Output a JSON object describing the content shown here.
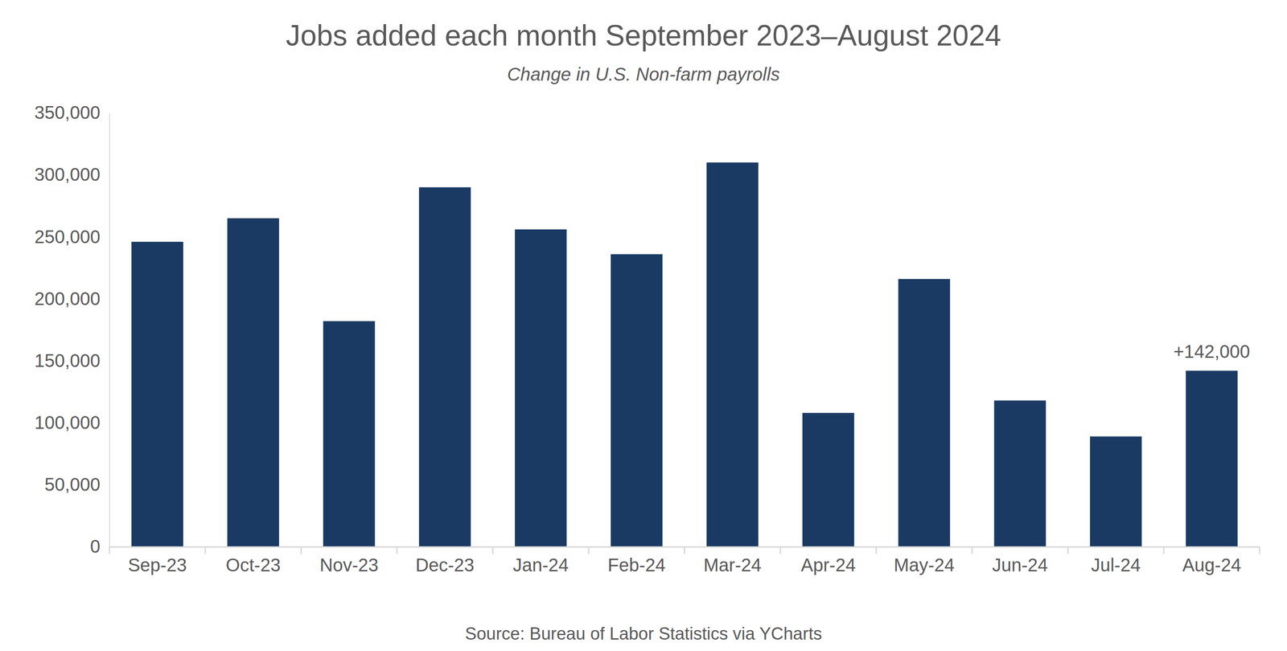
{
  "chart_data": {
    "type": "bar",
    "title": "Jobs added each month September 2023–August 2024",
    "subtitle": "Change in U.S. Non-farm payrolls",
    "source": "Source: Bureau of Labor Statistics via YCharts",
    "categories": [
      "Sep-23",
      "Oct-23",
      "Nov-23",
      "Dec-23",
      "Jan-24",
      "Feb-24",
      "Mar-24",
      "Apr-24",
      "May-24",
      "Jun-24",
      "Jul-24",
      "Aug-24"
    ],
    "values": [
      246000,
      265000,
      182000,
      290000,
      256000,
      236000,
      310000,
      108000,
      216000,
      118000,
      89000,
      142000
    ],
    "value_labels": [
      null,
      null,
      null,
      null,
      null,
      null,
      null,
      null,
      null,
      null,
      null,
      "+142,000"
    ],
    "data_labels": true,
    "color": "#1a3a63",
    "ylim": [
      0,
      350000
    ],
    "yticks": [
      0,
      {
        "value": 50000,
        "label": "50,000"
      },
      {
        "value": 100000,
        "label": "100,000"
      },
      {
        "value": 150000,
        "label": "150,000"
      },
      {
        "value": 200000,
        "label": "200,000"
      },
      {
        "value": 250000,
        "label": "250,000"
      },
      {
        "value": 300000,
        "label": "300,000"
      },
      {
        "value": 350000,
        "label": "350,000"
      }
    ],
    "grid": false
  }
}
